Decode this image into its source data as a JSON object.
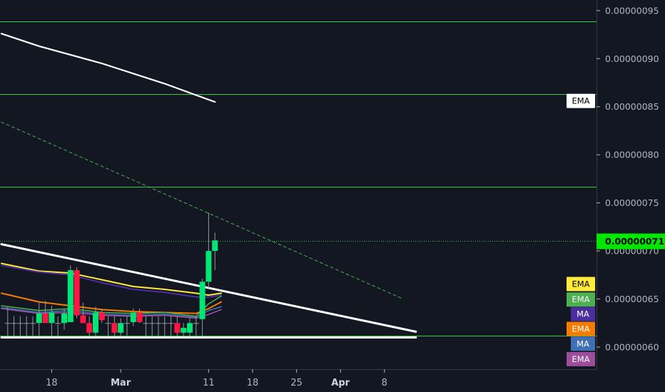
{
  "chart_data": {
    "type": "candlestick",
    "y_axis": {
      "range": [
        5.77e-07,
        9.61e-07
      ],
      "ticks": [
        "0.00000060",
        "0.00000065",
        "0.00000070",
        "0.00000075",
        "0.00000080",
        "0.00000085",
        "0.00000090",
        "0.00000095"
      ],
      "tick_values": [
        6e-07,
        6.5e-07,
        7e-07,
        7.5e-07,
        8e-07,
        8.5e-07,
        9e-07,
        9.5e-07
      ]
    },
    "x_axis": {
      "range": [
        -6,
        89
      ],
      "ticks": [
        {
          "label": "18",
          "day": 2,
          "bold": false
        },
        {
          "label": "Mar",
          "day": 13,
          "bold": true
        },
        {
          "label": "11",
          "day": 27,
          "bold": false
        },
        {
          "label": "18",
          "day": 34,
          "bold": false
        },
        {
          "label": "25",
          "day": 41,
          "bold": false
        },
        {
          "label": "Apr",
          "day": 48,
          "bold": true
        },
        {
          "label": "8",
          "day": 55,
          "bold": false
        }
      ]
    },
    "current_price": "0.00000071",
    "current_price_value": 7.1e-07,
    "horizontal_levels": [
      9.39e-07,
      8.63e-07,
      7.67e-07,
      7.105e-07,
      6.12e-07
    ],
    "candles": [
      {
        "d": -5,
        "o": 6.25e-07,
        "h": 6.42e-07,
        "l": 6.11e-07,
        "c": 6.25e-07
      },
      {
        "d": -4,
        "o": 6.25e-07,
        "h": 6.32e-07,
        "l": 6.11e-07,
        "c": 6.25e-07
      },
      {
        "d": -3,
        "o": 6.25e-07,
        "h": 6.32e-07,
        "l": 6.11e-07,
        "c": 6.25e-07
      },
      {
        "d": -2,
        "o": 6.25e-07,
        "h": 6.32e-07,
        "l": 6.11e-07,
        "c": 6.25e-07
      },
      {
        "d": -1,
        "o": 6.25e-07,
        "h": 6.32e-07,
        "l": 6.11e-07,
        "c": 6.25e-07
      },
      {
        "d": 0,
        "o": 6.25e-07,
        "h": 6.46e-07,
        "l": 6.11e-07,
        "c": 6.35e-07
      },
      {
        "d": 1,
        "o": 6.35e-07,
        "h": 6.48e-07,
        "l": 6.25e-07,
        "c": 6.25e-07
      },
      {
        "d": 2,
        "o": 6.25e-07,
        "h": 6.43e-07,
        "l": 6.11e-07,
        "c": 6.36e-07
      },
      {
        "d": 3,
        "o": 6.25e-07,
        "h": 6.32e-07,
        "l": 6.11e-07,
        "c": 6.25e-07
      },
      {
        "d": 4,
        "o": 6.25e-07,
        "h": 6.4e-07,
        "l": 6.18e-07,
        "c": 6.35e-07
      },
      {
        "d": 5,
        "o": 6.26e-07,
        "h": 6.85e-07,
        "l": 6.26e-07,
        "c": 6.8e-07
      },
      {
        "d": 6,
        "o": 6.8e-07,
        "h": 6.83e-07,
        "l": 6.3e-07,
        "c": 6.33e-07
      },
      {
        "d": 7,
        "o": 6.33e-07,
        "h": 6.46e-07,
        "l": 6.25e-07,
        "c": 6.25e-07
      },
      {
        "d": 8,
        "o": 6.25e-07,
        "h": 6.32e-07,
        "l": 6.11e-07,
        "c": 6.15e-07
      },
      {
        "d": 9,
        "o": 6.15e-07,
        "h": 6.42e-07,
        "l": 6.11e-07,
        "c": 6.36e-07
      },
      {
        "d": 10,
        "o": 6.36e-07,
        "h": 6.4e-07,
        "l": 6.25e-07,
        "c": 6.28e-07
      },
      {
        "d": 11,
        "o": 6.25e-07,
        "h": 6.32e-07,
        "l": 6.11e-07,
        "c": 6.25e-07
      },
      {
        "d": 12,
        "o": 6.25e-07,
        "h": 6.32e-07,
        "l": 6.11e-07,
        "c": 6.15e-07
      },
      {
        "d": 13,
        "o": 6.15e-07,
        "h": 6.3e-07,
        "l": 6.11e-07,
        "c": 6.25e-07
      },
      {
        "d": 14,
        "o": 6.25e-07,
        "h": 6.32e-07,
        "l": 6.11e-07,
        "c": 6.25e-07
      },
      {
        "d": 15,
        "o": 6.26e-07,
        "h": 6.4e-07,
        "l": 6.22e-07,
        "c": 6.36e-07
      },
      {
        "d": 16,
        "o": 6.36e-07,
        "h": 6.4e-07,
        "l": 6.25e-07,
        "c": 6.26e-07
      },
      {
        "d": 17,
        "o": 6.25e-07,
        "h": 6.32e-07,
        "l": 6.11e-07,
        "c": 6.25e-07
      },
      {
        "d": 18,
        "o": 6.25e-07,
        "h": 6.32e-07,
        "l": 6.11e-07,
        "c": 6.25e-07
      },
      {
        "d": 19,
        "o": 6.25e-07,
        "h": 6.32e-07,
        "l": 6.11e-07,
        "c": 6.25e-07
      },
      {
        "d": 20,
        "o": 6.25e-07,
        "h": 6.32e-07,
        "l": 6.11e-07,
        "c": 6.25e-07
      },
      {
        "d": 21,
        "o": 6.25e-07,
        "h": 6.32e-07,
        "l": 6.11e-07,
        "c": 6.25e-07
      },
      {
        "d": 22,
        "o": 6.25e-07,
        "h": 6.32e-07,
        "l": 6.11e-07,
        "c": 6.15e-07
      },
      {
        "d": 23,
        "o": 6.15e-07,
        "h": 6.25e-07,
        "l": 6.11e-07,
        "c": 6.2e-07
      },
      {
        "d": 24,
        "o": 6.15e-07,
        "h": 6.3e-07,
        "l": 6.11e-07,
        "c": 6.25e-07
      },
      {
        "d": 25,
        "o": 6.25e-07,
        "h": 6.32e-07,
        "l": 6.11e-07,
        "c": 6.25e-07
      },
      {
        "d": 26,
        "o": 6.29e-07,
        "h": 6.71e-07,
        "l": 6.11e-07,
        "c": 6.68e-07
      },
      {
        "d": 27,
        "o": 6.68e-07,
        "h": 7.4e-07,
        "l": 6.61e-07,
        "c": 7e-07
      },
      {
        "d": 28,
        "o": 7e-07,
        "h": 7.19e-07,
        "l": 6.8e-07,
        "c": 7.11e-07
      }
    ],
    "lines": [
      {
        "name": "EMA",
        "color": "#ffffff",
        "width": 2.2,
        "points": [
          [
            -6,
            9.26e-07
          ],
          [
            0,
            9.13e-07
          ],
          [
            10,
            8.95e-07
          ],
          [
            20,
            8.74e-07
          ],
          [
            25,
            8.62e-07
          ],
          [
            28,
            8.55e-07
          ]
        ]
      },
      {
        "name": "EMA",
        "color": "#ffeb3b",
        "width": 2,
        "points": [
          [
            -6,
            6.87e-07
          ],
          [
            0,
            6.79e-07
          ],
          [
            5,
            6.77e-07
          ],
          [
            10,
            6.7e-07
          ],
          [
            15,
            6.63e-07
          ],
          [
            20,
            6.6e-07
          ],
          [
            25,
            6.56e-07
          ],
          [
            27,
            6.54e-07
          ],
          [
            29,
            6.56e-07
          ]
        ]
      },
      {
        "name": "MA",
        "color": "#4a2ea0",
        "width": 2,
        "points": [
          [
            -6,
            6.85e-07
          ],
          [
            0,
            6.78e-07
          ],
          [
            5,
            6.75e-07
          ],
          [
            10,
            6.67e-07
          ],
          [
            15,
            6.6e-07
          ],
          [
            20,
            6.57e-07
          ],
          [
            25,
            6.52e-07
          ],
          [
            27,
            6.52e-07
          ],
          [
            29,
            6.54e-07
          ]
        ]
      },
      {
        "name": "EMA",
        "color": "#f57c00",
        "width": 2,
        "points": [
          [
            -6,
            6.56e-07
          ],
          [
            0,
            6.47e-07
          ],
          [
            5,
            6.43e-07
          ],
          [
            10,
            6.39e-07
          ],
          [
            15,
            6.37e-07
          ],
          [
            20,
            6.36e-07
          ],
          [
            25,
            6.35e-07
          ],
          [
            27,
            6.4e-07
          ],
          [
            29,
            6.47e-07
          ]
        ]
      },
      {
        "name": "EMA",
        "color": "#4caf50",
        "width": 1.6,
        "points": [
          [
            -6,
            6.43e-07
          ],
          [
            0,
            6.38e-07
          ],
          [
            5,
            6.4e-07
          ],
          [
            10,
            6.36e-07
          ],
          [
            15,
            6.35e-07
          ],
          [
            20,
            6.36e-07
          ],
          [
            25,
            6.32e-07
          ],
          [
            27,
            6.45e-07
          ],
          [
            29,
            6.53e-07
          ]
        ]
      },
      {
        "name": "MA",
        "color": "#3f6fb5",
        "width": 1.6,
        "points": [
          [
            -6,
            6.41e-07
          ],
          [
            0,
            6.36e-07
          ],
          [
            5,
            6.38e-07
          ],
          [
            10,
            6.34e-07
          ],
          [
            15,
            6.33e-07
          ],
          [
            20,
            6.34e-07
          ],
          [
            25,
            6.31e-07
          ],
          [
            27,
            6.38e-07
          ],
          [
            29,
            6.42e-07
          ]
        ]
      },
      {
        "name": "EMA",
        "color": "#9c4d9c",
        "width": 1.6,
        "points": [
          [
            -6,
            6.4e-07
          ],
          [
            0,
            6.35e-07
          ],
          [
            5,
            6.36e-07
          ],
          [
            10,
            6.33e-07
          ],
          [
            15,
            6.32e-07
          ],
          [
            20,
            6.33e-07
          ],
          [
            25,
            6.3e-07
          ],
          [
            27,
            6.34e-07
          ],
          [
            29,
            6.39e-07
          ]
        ]
      }
    ],
    "trendlines": [
      {
        "color": "#ffffff",
        "width": 3,
        "dashed": false,
        "from": [
          -6,
          7.07e-07
        ],
        "to": [
          60,
          6.16e-07
        ]
      },
      {
        "color": "#ffffff",
        "width": 3,
        "dashed": false,
        "from": [
          -6,
          6.1e-07
        ],
        "to": [
          60,
          6.1e-07
        ]
      },
      {
        "color": "#4caf50",
        "width": 1,
        "dashed": true,
        "from": [
          -6,
          8.34e-07
        ],
        "to": [
          58,
          6.5e-07
        ]
      }
    ],
    "labels": [
      {
        "text": "EMA",
        "y": 8.56e-07,
        "bg": "#ffffff",
        "fg": "#000000"
      },
      {
        "text": "EMA",
        "y": 6.656e-07,
        "bg": "#ffeb3b",
        "fg": "#000000"
      },
      {
        "text": "EMA",
        "y": 6.495e-07,
        "bg": "#4caf50",
        "fg": "#ffffff"
      },
      {
        "text": "MA",
        "y": 6.343e-07,
        "bg": "#4a2ea0",
        "fg": "#ffffff"
      },
      {
        "text": "EMA",
        "y": 6.189e-07,
        "bg": "#f57c00",
        "fg": "#ffffff"
      },
      {
        "text": "MA",
        "y": 6.035e-07,
        "bg": "#3f6fb5",
        "fg": "#ffffff"
      },
      {
        "text": "EMA",
        "y": 5.875e-07,
        "bg": "#9c4d9c",
        "fg": "#ffffff"
      }
    ],
    "colors": {
      "bg": "#131722",
      "up": "#00e676",
      "down": "#ff1744",
      "level": "#2ecc40",
      "price_tag": "#00e600"
    }
  }
}
